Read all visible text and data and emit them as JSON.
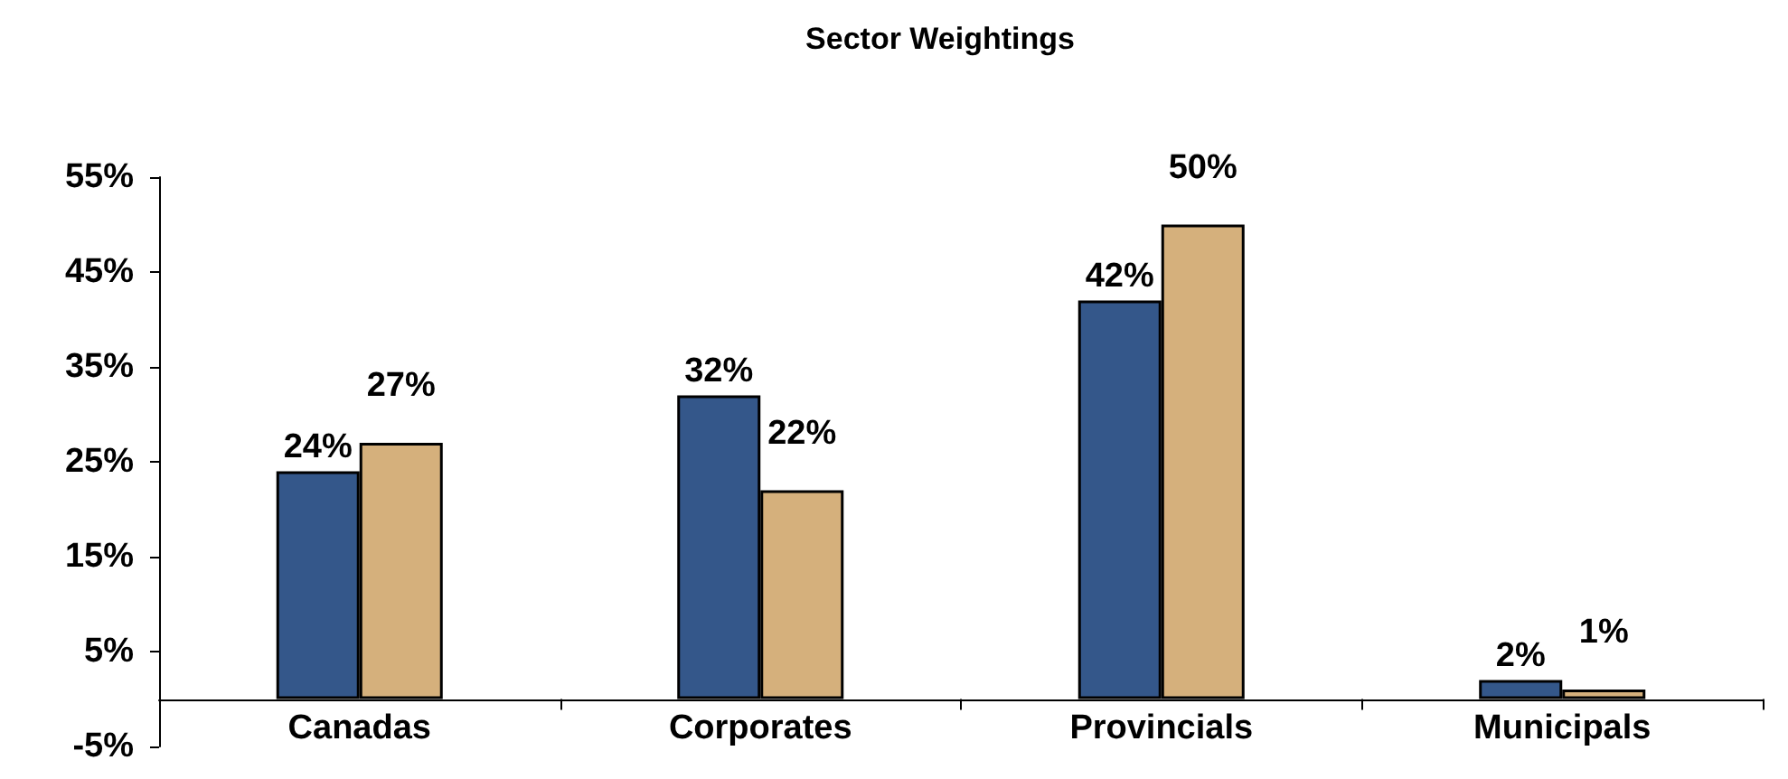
{
  "chart_data": {
    "type": "bar",
    "title": "Sector Weightings",
    "categories": [
      "Canadas",
      "Corporates",
      "Provincials",
      "Municipals"
    ],
    "series": [
      {
        "color": "#34578a",
        "values": [
          24,
          32,
          42,
          2
        ],
        "value_labels": [
          "24%",
          "32%",
          "42%",
          "2%"
        ]
      },
      {
        "color": "#d5b07c",
        "values": [
          27,
          22,
          50,
          1
        ],
        "value_labels": [
          "27%",
          "22%",
          "50%",
          "1%"
        ]
      }
    ],
    "ylim": [
      -5,
      55
    ],
    "yticks": [
      {
        "value": -5,
        "label": "-5%"
      },
      {
        "value": 5,
        "label": "5%"
      },
      {
        "value": 15,
        "label": "15%"
      },
      {
        "value": 25,
        "label": "25%"
      },
      {
        "value": 35,
        "label": "35%"
      },
      {
        "value": 45,
        "label": "45%"
      },
      {
        "value": 55,
        "label": "55%"
      }
    ],
    "grid": false
  }
}
